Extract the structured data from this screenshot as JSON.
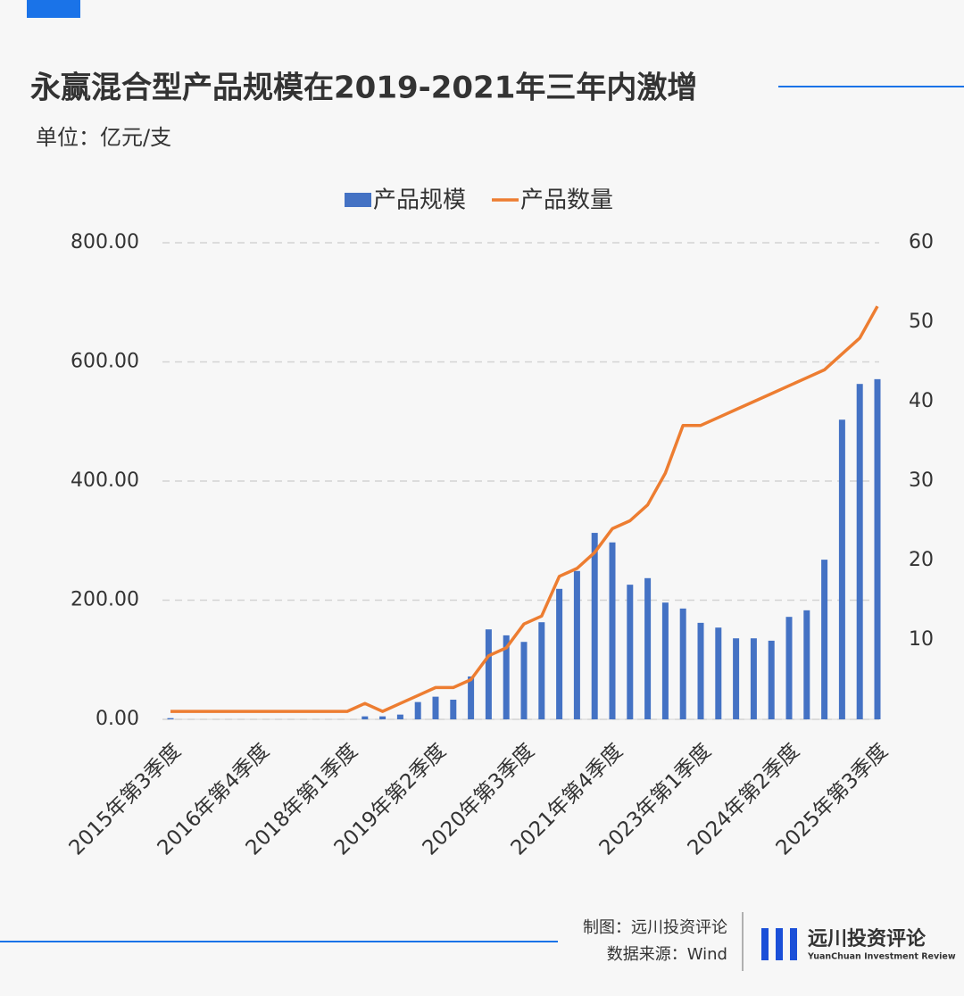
{
  "chart_data": {
    "type": "bar-line",
    "title": "永赢混合型产品规模在2019-2021年三年内激增",
    "subtitle": "单位：亿元/支",
    "categories": [
      "2015年第3季度",
      null,
      null,
      null,
      null,
      "2016年第4季度",
      null,
      null,
      null,
      null,
      "2018年第1季度",
      null,
      null,
      null,
      null,
      "2019年第2季度",
      null,
      null,
      null,
      null,
      "2020年第3季度",
      null,
      null,
      null,
      null,
      "2021年第4季度",
      null,
      null,
      null,
      null,
      "2023年第1季度",
      null,
      null,
      null,
      null,
      "2024年第2季度",
      null,
      null,
      null,
      null,
      "2025年第3季度"
    ],
    "series": [
      {
        "name": "产品规模",
        "color": "#4472c4",
        "kind": "bar",
        "axis": "y",
        "values": [
          2,
          0,
          0,
          0,
          0,
          0,
          0,
          0,
          0,
          0,
          0,
          5,
          5,
          8,
          29,
          38,
          33,
          72,
          151,
          141,
          130,
          163,
          219,
          249,
          313,
          297,
          226,
          237,
          196,
          186,
          162,
          154,
          136,
          136,
          132,
          172,
          183,
          268,
          503,
          563,
          571
        ]
      },
      {
        "name": "产品数量",
        "color": "#ed7d31",
        "kind": "line",
        "axis": "y2",
        "values": [
          1,
          1,
          1,
          1,
          1,
          1,
          1,
          1,
          1,
          1,
          1,
          2,
          1,
          2,
          3,
          4,
          4,
          5,
          8,
          9,
          12,
          13,
          18,
          19,
          21,
          24,
          25,
          27,
          31,
          37,
          37,
          38,
          39,
          40,
          41,
          42,
          43,
          44,
          46,
          48,
          52
        ]
      }
    ],
    "ylim": [
      0,
      800
    ],
    "yticks": [
      {
        "value": 0,
        "label": "0.00"
      },
      {
        "value": 200,
        "label": "200.00"
      },
      {
        "value": 400,
        "label": "400.00"
      },
      {
        "value": 600,
        "label": "600.00"
      },
      {
        "value": 800,
        "label": "800.00"
      }
    ],
    "y2lim": [
      0,
      60
    ],
    "y2ticks": [
      10,
      20,
      30,
      40,
      50,
      60
    ],
    "grid": true,
    "legend": "top",
    "credit": "制图：远川投资评论",
    "source": "数据来源：Wind",
    "brand": "远川投资评论",
    "brand_en": "YuanChuan Investment Review"
  }
}
